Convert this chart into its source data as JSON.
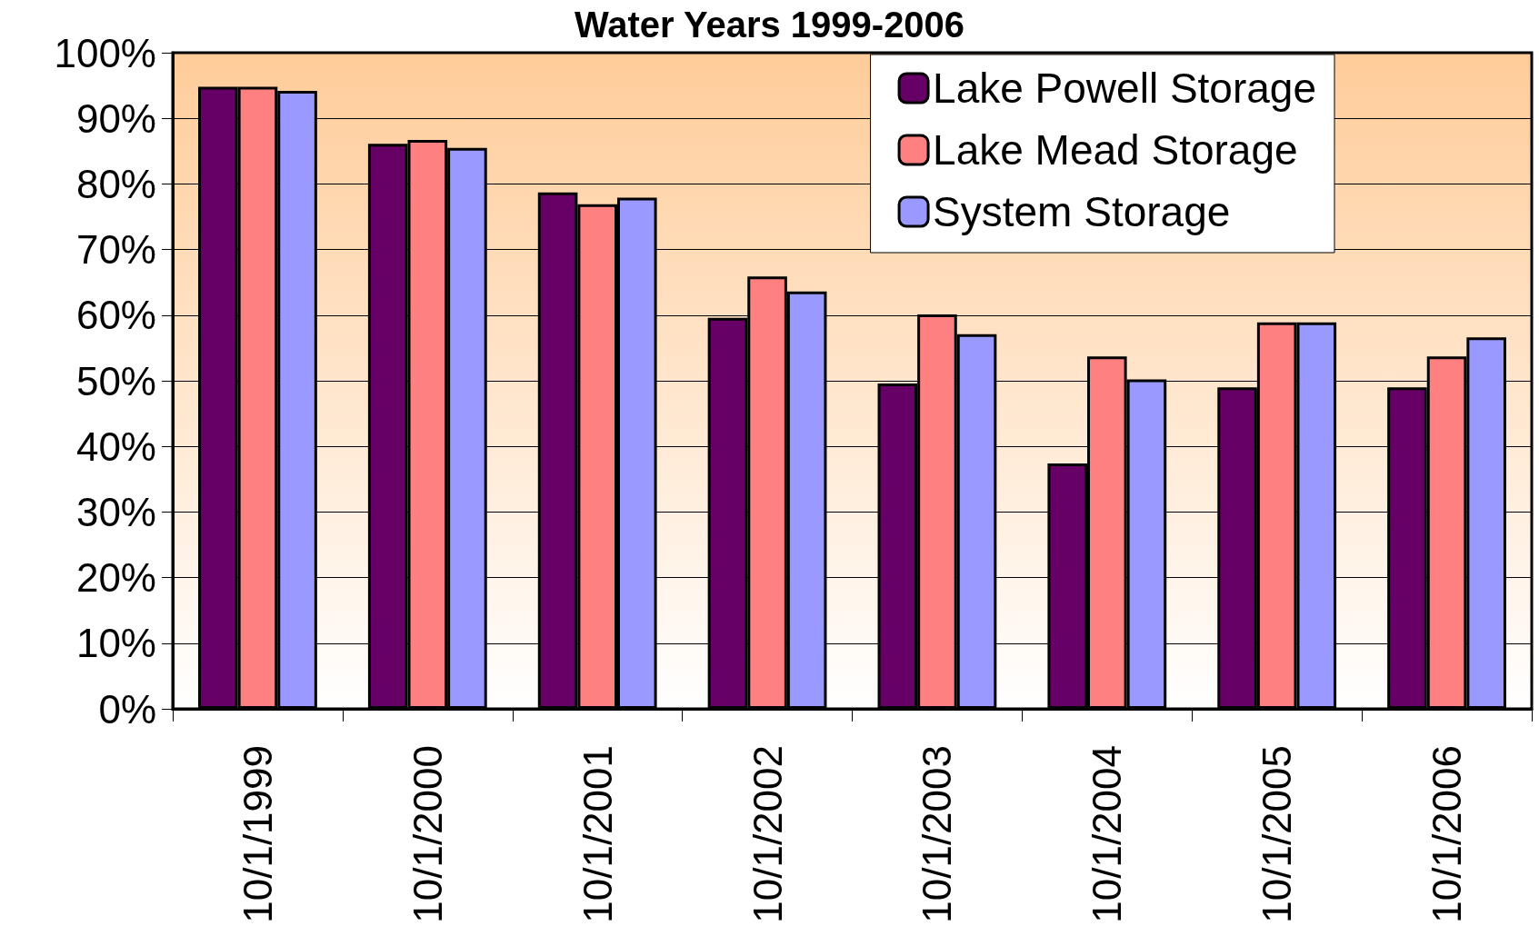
{
  "chart_data": {
    "type": "bar",
    "title": "Water Years 1999-2006",
    "categories": [
      "10/1/1999",
      "10/1/2000",
      "10/1/2001",
      "10/1/2002",
      "10/1/2003",
      "10/1/2004",
      "10/1/2005",
      "10/1/2006"
    ],
    "series": [
      {
        "name": "Lake Powell Storage",
        "color": "#660066",
        "values": [
          94.8,
          86.1,
          78.7,
          59.6,
          49.6,
          37.4,
          49.0,
          49.0
        ]
      },
      {
        "name": "Lake Mead Storage",
        "color": "#ff8080",
        "values": [
          94.8,
          86.7,
          76.9,
          65.9,
          60.1,
          53.7,
          58.9,
          53.7
        ]
      },
      {
        "name": "System Storage",
        "color": "#9999ff",
        "values": [
          94.2,
          85.5,
          77.9,
          63.6,
          57.1,
          50.2,
          58.9,
          56.6
        ]
      }
    ],
    "ylim": [
      0,
      100
    ],
    "yticks": [
      {
        "value": 0,
        "label": "0%"
      },
      {
        "value": 10,
        "label": "10%"
      },
      {
        "value": 20,
        "label": "20%"
      },
      {
        "value": 30,
        "label": "30%"
      },
      {
        "value": 40,
        "label": "40%"
      },
      {
        "value": 50,
        "label": "50%"
      },
      {
        "value": 60,
        "label": "60%"
      },
      {
        "value": 70,
        "label": "70%"
      },
      {
        "value": 80,
        "label": "80%"
      },
      {
        "value": 90,
        "label": "90%"
      },
      {
        "value": 100,
        "label": "100%"
      }
    ],
    "grid": "y",
    "legend": "top right"
  }
}
